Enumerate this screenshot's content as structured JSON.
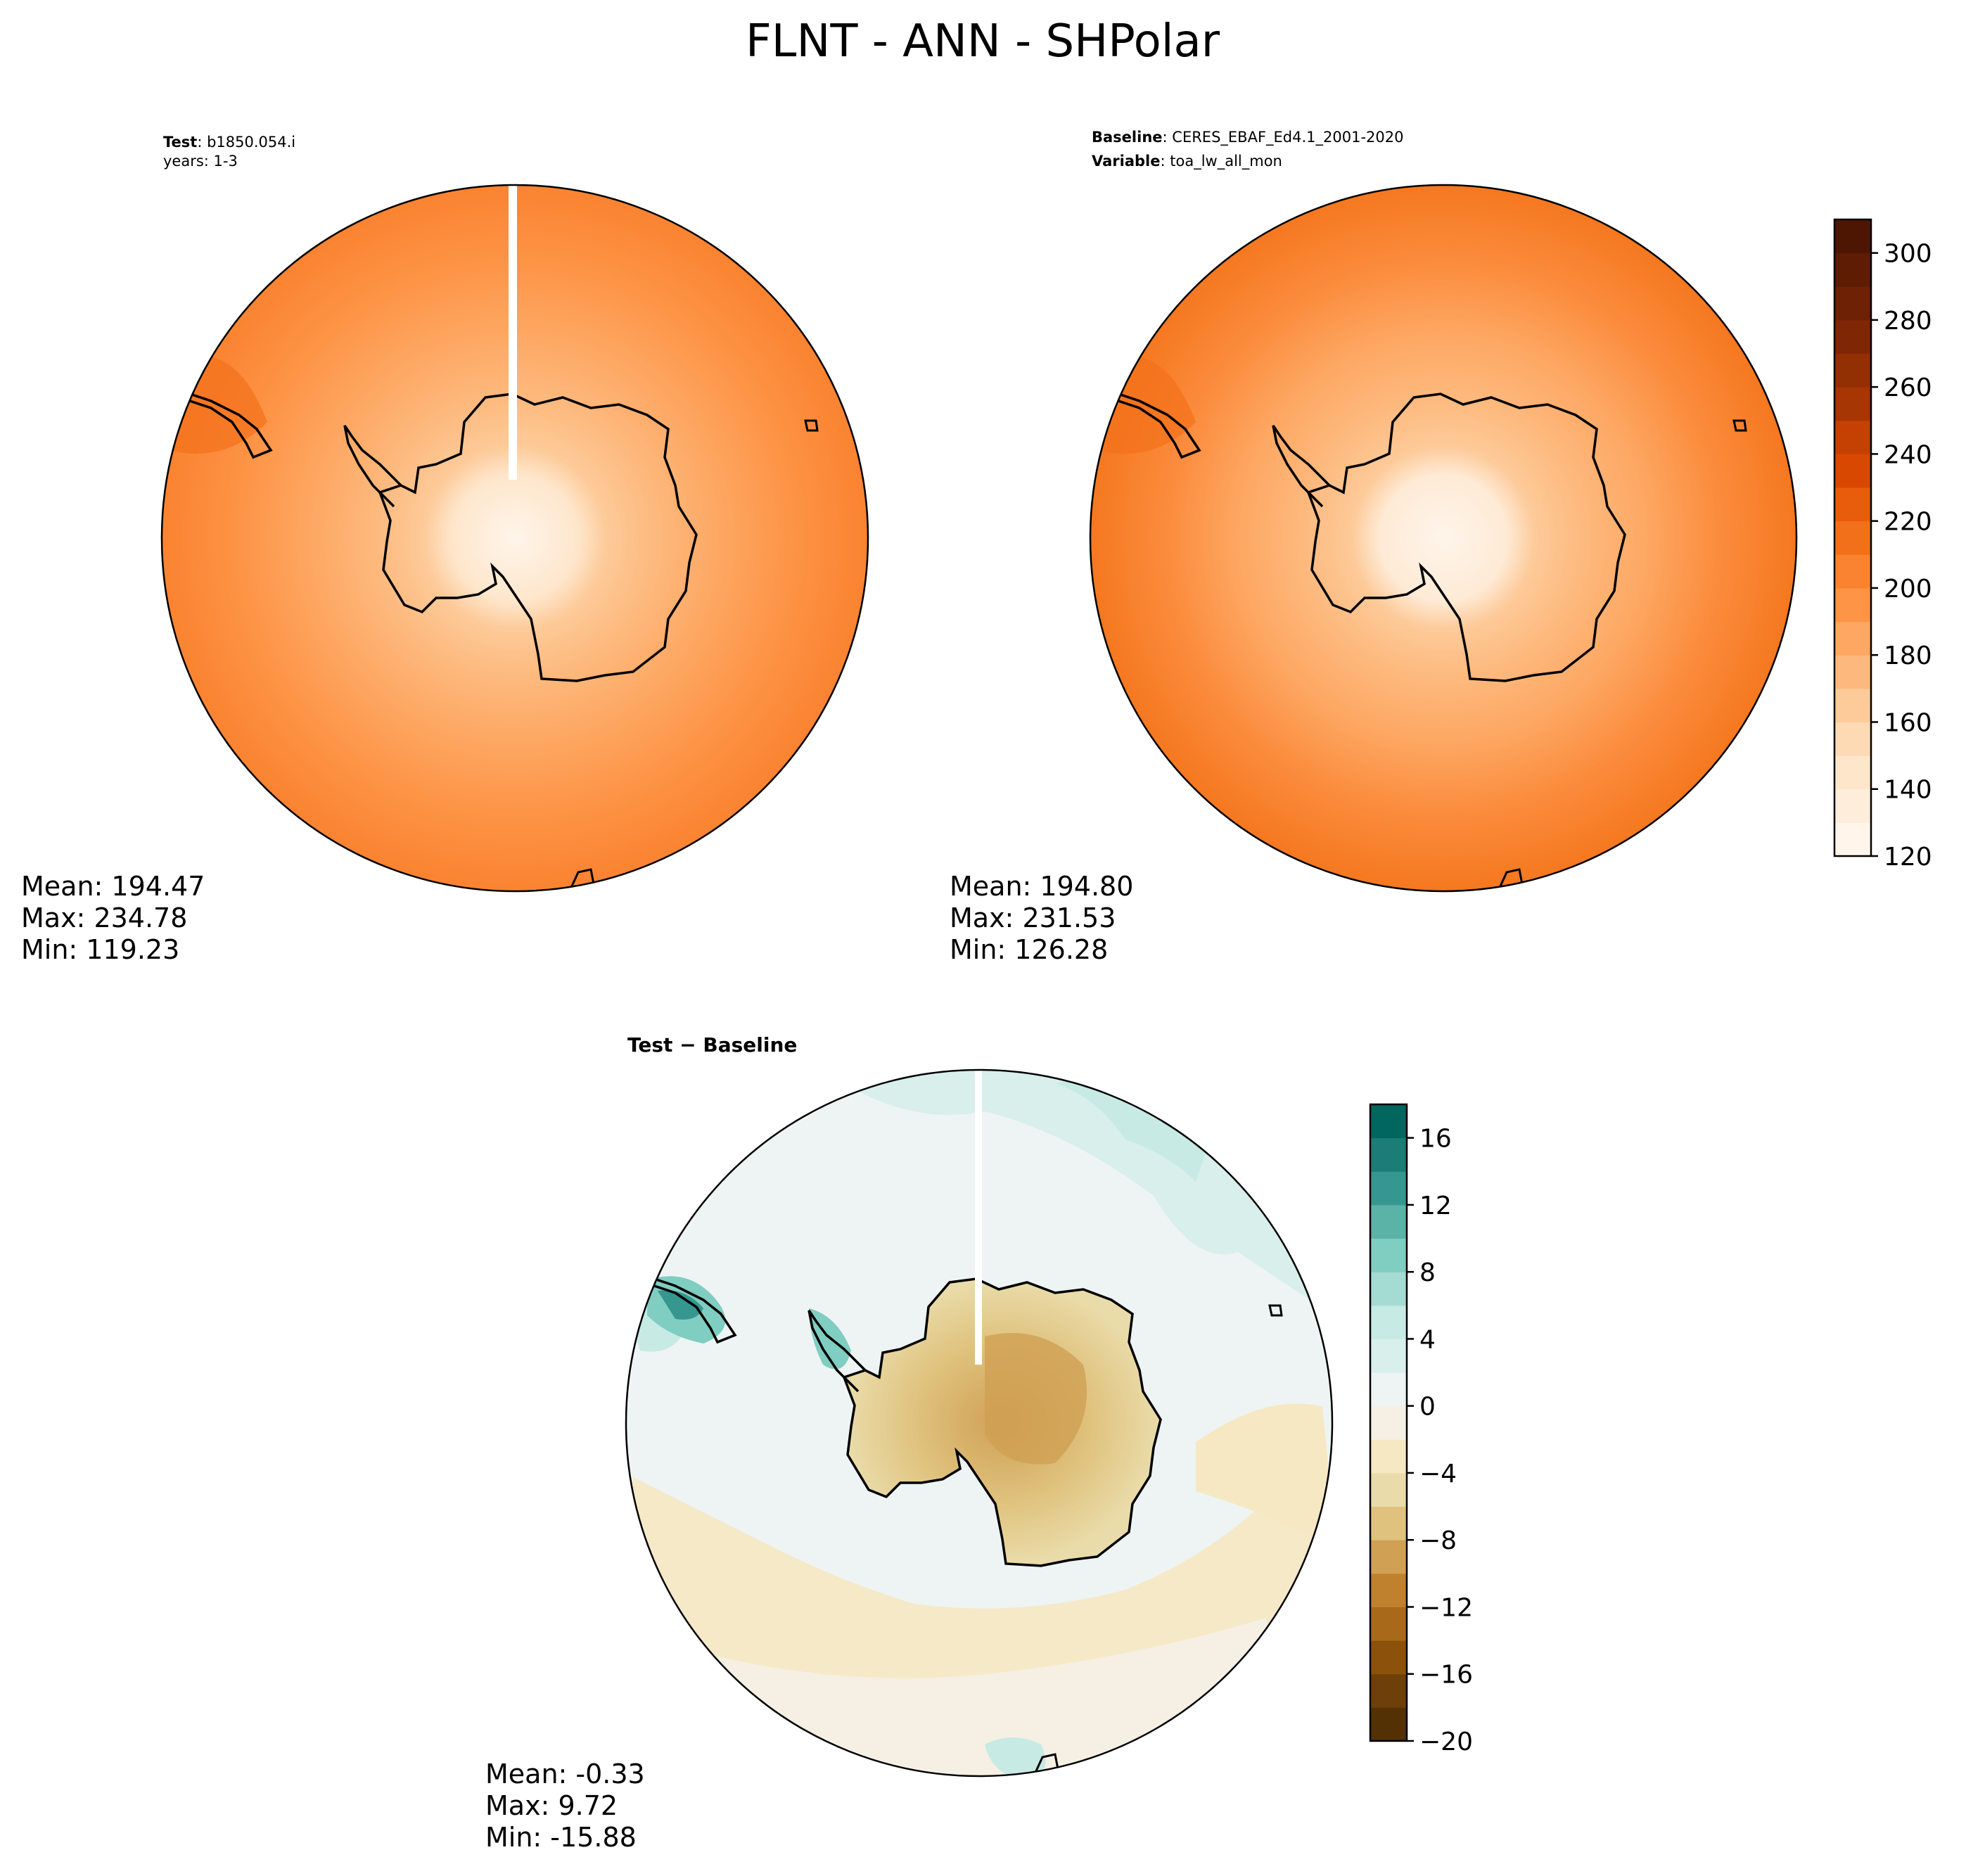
{
  "figure": {
    "title": "FLNT - ANN - SHPolar"
  },
  "panels": {
    "test": {
      "header_key": "Test",
      "header_value": "b1850.054.i",
      "header_line2": "years: 1-3",
      "stats": {
        "mean": "Mean: 194.47",
        "max": "Max: 234.78",
        "min": "Min: 119.23"
      }
    },
    "baseline": {
      "header_key": "Baseline",
      "header_value": "CERES_EBAF_Ed4.1_2001-2020",
      "header_key2": "Variable",
      "header_value2": "toa_lw_all_mon",
      "stats": {
        "mean": "Mean: 194.80",
        "max": "Max: 231.53",
        "min": "Min: 126.28"
      }
    },
    "diff": {
      "header": "Test − Baseline",
      "stats": {
        "mean": "Mean: -0.33",
        "max": "Max:  9.72",
        "min": "Min: -15.88"
      }
    }
  },
  "colorbars": {
    "main": {
      "min": 120,
      "max": 310,
      "step": 10,
      "tick_values": [
        120,
        140,
        160,
        180,
        200,
        220,
        240,
        260,
        280,
        300
      ],
      "tick_labels": [
        "120",
        "140",
        "160",
        "180",
        "200",
        "220",
        "240",
        "260",
        "280",
        "300"
      ],
      "colors": [
        "#fff5eb",
        "#ffeddb",
        "#fee6cb",
        "#fdd9b4",
        "#fdca99",
        "#fdb97d",
        "#fda762",
        "#fd9446",
        "#fa8331",
        "#f3701b",
        "#e85d0c",
        "#d94801",
        "#c44103",
        "#a63603",
        "#933003",
        "#7f2704",
        "#6e2104",
        "#5f1c04",
        "#4d1603"
      ]
    },
    "diff": {
      "min": -20,
      "max": 18,
      "step": 2,
      "tick_values": [
        -20,
        -16,
        -12,
        -8,
        -4,
        0,
        4,
        8,
        12,
        16
      ],
      "tick_labels": [
        "−20",
        "−16",
        "−12",
        "−8",
        "−4",
        "0",
        "4",
        "8",
        "12",
        "16"
      ],
      "colors": [
        "#543005",
        "#6e3f09",
        "#8c510a",
        "#a86a1a",
        "#bf812d",
        "#d0a054",
        "#dfc27d",
        "#eadcaa",
        "#f6e8c3",
        "#f5f0e3",
        "#eef4f3",
        "#d8efeb",
        "#c7eae5",
        "#a4dbd2",
        "#80cdc1",
        "#5bb3a8",
        "#35978f",
        "#1b7d75",
        "#01665e"
      ]
    }
  },
  "map_colors": {
    "test_rings": [
      "#fff5eb",
      "#fee6cb",
      "#fdd9b4",
      "#fdca99",
      "#fdb97d",
      "#fda762",
      "#fd9446",
      "#fa8331"
    ],
    "diff_ocean": "#eef4f3",
    "diff_land": "#dfc27d",
    "coast": "#000000"
  }
}
